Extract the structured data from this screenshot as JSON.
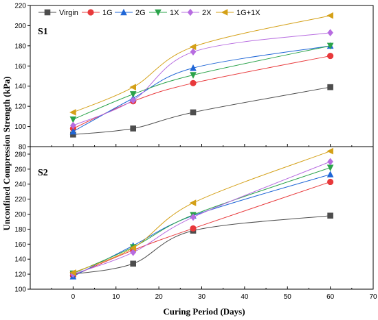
{
  "chart_data": {
    "type": "line",
    "xlabel": "Curing Period (Days)",
    "ylabel": "Unconfined Compression Strength (kPa)",
    "xlim": [
      -10,
      70
    ],
    "xticks": [
      0,
      10,
      20,
      30,
      40,
      50,
      60,
      70
    ],
    "x": [
      0,
      14,
      28,
      60
    ],
    "legend": {
      "placement": "top",
      "entries": [
        "Virgin",
        "1G",
        "2G",
        "1X",
        "2X",
        "1G+1X"
      ]
    },
    "series_style": [
      {
        "name": "Virgin",
        "color": "#4d4d4d",
        "marker": "square"
      },
      {
        "name": "1G",
        "color": "#e8393b",
        "marker": "circle"
      },
      {
        "name": "2G",
        "color": "#1f66d6",
        "marker": "triangle-up"
      },
      {
        "name": "1X",
        "color": "#2aa34a",
        "marker": "triangle-down"
      },
      {
        "name": "2X",
        "color": "#b76ce0",
        "marker": "diamond"
      },
      {
        "name": "1G+1X",
        "color": "#d4a017",
        "marker": "triangle-left"
      }
    ],
    "panels": [
      {
        "label": "S1",
        "ylim": [
          80,
          220
        ],
        "yticks": [
          80,
          100,
          120,
          140,
          160,
          180,
          200,
          220
        ],
        "series": [
          {
            "name": "Virgin",
            "values": [
              92,
              98,
              114,
              139
            ]
          },
          {
            "name": "1G",
            "values": [
              98,
              125,
              143,
              170
            ]
          },
          {
            "name": "2G",
            "values": [
              95,
              128,
              158,
              180
            ]
          },
          {
            "name": "1X",
            "values": [
              107,
              132,
              151,
              180
            ]
          },
          {
            "name": "2X",
            "values": [
              101,
              126,
              174,
              193
            ]
          },
          {
            "name": "1G+1X",
            "values": [
              114,
              139,
              179,
              210
            ]
          }
        ]
      },
      {
        "label": "S2",
        "ylim": [
          100,
          290
        ],
        "yticks": [
          100,
          120,
          140,
          160,
          180,
          200,
          220,
          240,
          260,
          280
        ],
        "series": [
          {
            "name": "Virgin",
            "values": [
              120,
              134,
              178,
              198
            ]
          },
          {
            "name": "1G",
            "values": [
              118,
              152,
              181,
              243
            ]
          },
          {
            "name": "2G",
            "values": [
              117,
              158,
              198,
              253
            ]
          },
          {
            "name": "1X",
            "values": [
              121,
              156,
              199,
              262
            ]
          },
          {
            "name": "2X",
            "values": [
              120,
              149,
              196,
              270
            ]
          },
          {
            "name": "1G+1X",
            "values": [
              122,
              155,
              215,
              284
            ]
          }
        ]
      }
    ]
  }
}
